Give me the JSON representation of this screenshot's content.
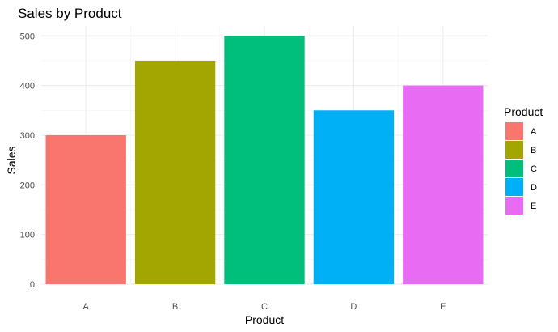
{
  "chart_data": {
    "type": "bar",
    "title": "Sales by Product",
    "xlabel": "Product",
    "ylabel": "Sales",
    "categories": [
      "A",
      "B",
      "C",
      "D",
      "E"
    ],
    "values": [
      300,
      450,
      500,
      350,
      400
    ],
    "colors": [
      "#F8766D",
      "#A3A500",
      "#00BF7D",
      "#00B0F6",
      "#E76BF3"
    ],
    "ylim": [
      0,
      520
    ],
    "yticks": [
      0,
      100,
      200,
      300,
      400,
      500
    ],
    "grid": true,
    "legend": {
      "title": "Product",
      "placement": "right",
      "entries": [
        "A",
        "B",
        "C",
        "D",
        "E"
      ]
    }
  }
}
